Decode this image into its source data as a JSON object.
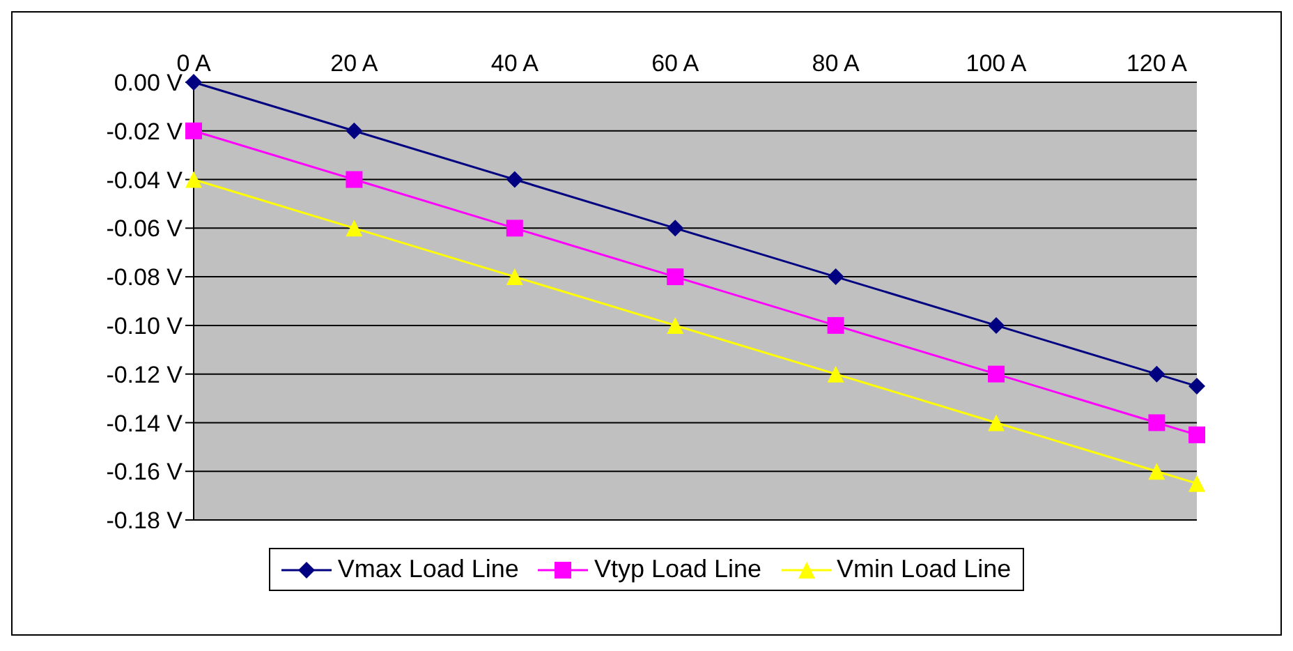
{
  "chart_data": {
    "type": "line",
    "x": [
      0,
      20,
      40,
      60,
      80,
      100,
      120,
      125
    ],
    "series": [
      {
        "name": "Vmax Load Line",
        "color": "#000080",
        "marker": "diamond",
        "values": [
          0,
          -0.02,
          -0.04,
          -0.06,
          -0.08,
          -0.1,
          -0.12,
          -0.125
        ]
      },
      {
        "name": "Vtyp Load Line",
        "color": "#ff00ff",
        "marker": "square",
        "values": [
          -0.02,
          -0.04,
          -0.06,
          -0.08,
          -0.1,
          -0.12,
          -0.14,
          -0.145
        ]
      },
      {
        "name": "Vmin Load Line",
        "color": "#ffff00",
        "marker": "triangle",
        "values": [
          -0.04,
          -0.06,
          -0.08,
          -0.1,
          -0.12,
          -0.14,
          -0.16,
          -0.165
        ]
      }
    ],
    "xlim": [
      0,
      125
    ],
    "xticks": [
      {
        "value": 0,
        "label": "0 A"
      },
      {
        "value": 20,
        "label": "20 A"
      },
      {
        "value": 40,
        "label": "40 A"
      },
      {
        "value": 60,
        "label": "60 A"
      },
      {
        "value": 80,
        "label": "80 A"
      },
      {
        "value": 100,
        "label": "100 A"
      },
      {
        "value": 120,
        "label": "120 A"
      }
    ],
    "ylim": [
      -0.18,
      0
    ],
    "yticks": [
      {
        "value": 0,
        "label": "0.00 V"
      },
      {
        "value": -0.02,
        "label": "-0.02 V"
      },
      {
        "value": -0.04,
        "label": "-0.04 V"
      },
      {
        "value": -0.06,
        "label": "-0.06 V"
      },
      {
        "value": -0.08,
        "label": "-0.08 V"
      },
      {
        "value": -0.1,
        "label": "-0.10 V"
      },
      {
        "value": -0.12,
        "label": "-0.12 V"
      },
      {
        "value": -0.14,
        "label": "-0.14 V"
      },
      {
        "value": -0.16,
        "label": "-0.16 V"
      },
      {
        "value": -0.18,
        "label": "-0.18 V"
      }
    ],
    "grid": "y",
    "legend": "bottom",
    "line_style": "solid"
  }
}
